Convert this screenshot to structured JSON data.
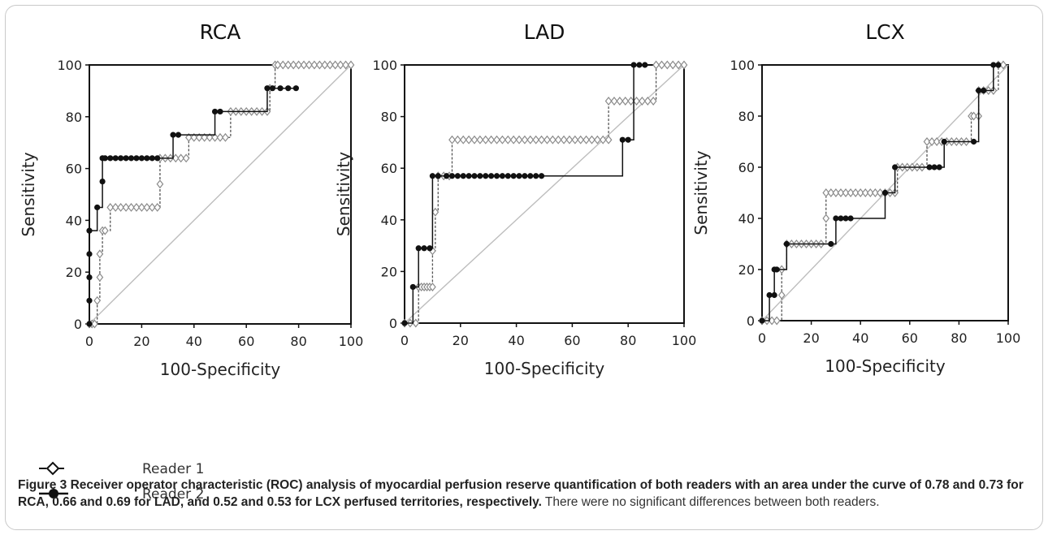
{
  "chart_data": [
    {
      "type": "line",
      "title": "RCA",
      "xlabel": "100-Specificity",
      "ylabel": "Sensitivity",
      "xlim": [
        0,
        100
      ],
      "ylim": [
        0,
        100
      ],
      "xticks": [
        0,
        20,
        40,
        60,
        80,
        100
      ],
      "yticks": [
        0,
        20,
        40,
        60,
        80,
        100
      ],
      "diagonal": true,
      "series": [
        {
          "name": "Reader 1",
          "x": [
            0,
            1,
            2,
            3,
            4,
            4,
            5,
            6,
            8,
            10,
            12,
            14,
            16,
            18,
            20,
            22,
            24,
            26,
            27,
            27,
            29,
            31,
            33,
            35,
            37,
            38,
            40,
            42,
            44,
            46,
            48,
            50,
            52,
            54,
            56,
            58,
            60,
            62,
            64,
            66,
            68,
            69,
            71,
            72,
            74,
            76,
            78,
            80,
            82,
            84,
            86,
            88,
            90,
            92,
            94,
            96,
            98,
            100
          ],
          "y": [
            0,
            0,
            0,
            9,
            18,
            27,
            36,
            36,
            45,
            45,
            45,
            45,
            45,
            45,
            45,
            45,
            45,
            45,
            54,
            64,
            64,
            64,
            64,
            64,
            64,
            72,
            72,
            72,
            72,
            72,
            72,
            72,
            72,
            82,
            82,
            82,
            82,
            82,
            82,
            82,
            82,
            91,
            100,
            100,
            100,
            100,
            100,
            100,
            100,
            100,
            100,
            100,
            100,
            100,
            100,
            100,
            100,
            100
          ]
        },
        {
          "name": "Reader 2",
          "x": [
            0,
            0,
            0,
            0,
            0,
            3,
            5,
            5,
            6,
            8,
            10,
            12,
            14,
            16,
            18,
            20,
            22,
            24,
            26,
            32,
            34,
            48,
            50,
            68,
            70,
            73,
            76,
            79
          ],
          "y": [
            0,
            9,
            18,
            27,
            36,
            45,
            55,
            64,
            64,
            64,
            64,
            64,
            64,
            64,
            64,
            64,
            64,
            64,
            64,
            73,
            73,
            82,
            82,
            91,
            91,
            91,
            91,
            91
          ]
        }
      ]
    },
    {
      "type": "line",
      "title": "LAD",
      "xlabel": "100-Specificity",
      "ylabel": "Sensitivity",
      "xlim": [
        0,
        100
      ],
      "ylim": [
        0,
        100
      ],
      "xticks": [
        0,
        20,
        40,
        60,
        80,
        100
      ],
      "yticks": [
        0,
        20,
        40,
        60,
        80,
        100
      ],
      "diagonal": true,
      "series": [
        {
          "name": "Reader 1",
          "x": [
            0,
            2,
            4,
            5,
            6,
            7,
            8,
            9,
            10,
            10,
            11,
            12,
            14,
            16,
            17,
            19,
            21,
            23,
            25,
            27,
            29,
            31,
            33,
            35,
            37,
            39,
            41,
            43,
            45,
            47,
            49,
            51,
            53,
            55,
            57,
            59,
            61,
            63,
            65,
            67,
            69,
            71,
            73,
            73,
            75,
            77,
            79,
            81,
            83,
            85,
            87,
            89,
            90,
            92,
            94,
            96,
            98,
            100
          ],
          "y": [
            0,
            0,
            0,
            14,
            14,
            14,
            14,
            14,
            14,
            28,
            43,
            57,
            57,
            57,
            71,
            71,
            71,
            71,
            71,
            71,
            71,
            71,
            71,
            71,
            71,
            71,
            71,
            71,
            71,
            71,
            71,
            71,
            71,
            71,
            71,
            71,
            71,
            71,
            71,
            71,
            71,
            71,
            71,
            86,
            86,
            86,
            86,
            86,
            86,
            86,
            86,
            86,
            100,
            100,
            100,
            100,
            100,
            100
          ]
        },
        {
          "name": "Reader 2",
          "x": [
            0,
            3,
            5,
            7,
            9,
            10,
            12,
            15,
            17,
            19,
            21,
            23,
            25,
            27,
            29,
            31,
            33,
            35,
            37,
            39,
            41,
            43,
            45,
            47,
            49,
            78,
            80,
            82,
            84,
            86
          ],
          "y": [
            0,
            14,
            29,
            29,
            29,
            57,
            57,
            57,
            57,
            57,
            57,
            57,
            57,
            57,
            57,
            57,
            57,
            57,
            57,
            57,
            57,
            57,
            57,
            57,
            57,
            71,
            71,
            100,
            100,
            100
          ]
        }
      ]
    },
    {
      "type": "line",
      "title": "LCX",
      "xlabel": "100-Specificity",
      "ylabel": "Sensitivity",
      "xlim": [
        0,
        100
      ],
      "ylim": [
        0,
        100
      ],
      "xticks": [
        0,
        20,
        40,
        60,
        80,
        100
      ],
      "yticks": [
        0,
        20,
        40,
        60,
        80,
        100
      ],
      "diagonal": true,
      "series": [
        {
          "name": "Reader 1",
          "x": [
            0,
            2,
            4,
            6,
            8,
            8,
            10,
            12,
            14,
            16,
            18,
            20,
            22,
            24,
            26,
            26,
            28,
            30,
            32,
            34,
            36,
            38,
            40,
            42,
            44,
            46,
            48,
            50,
            52,
            54,
            55,
            57,
            59,
            61,
            63,
            65,
            67,
            69,
            71,
            73,
            75,
            77,
            79,
            81,
            83,
            85,
            86,
            88,
            88,
            90,
            92,
            94,
            96,
            98
          ],
          "y": [
            0,
            0,
            0,
            0,
            10,
            20,
            30,
            30,
            30,
            30,
            30,
            30,
            30,
            30,
            40,
            50,
            50,
            50,
            50,
            50,
            50,
            50,
            50,
            50,
            50,
            50,
            50,
            50,
            50,
            50,
            60,
            60,
            60,
            60,
            60,
            60,
            70,
            70,
            70,
            70,
            70,
            70,
            70,
            70,
            70,
            80,
            80,
            80,
            90,
            90,
            90,
            90,
            100,
            100
          ]
        },
        {
          "name": "Reader 2",
          "x": [
            0,
            3,
            5,
            5,
            6,
            10,
            28,
            30,
            32,
            34,
            36,
            50,
            54,
            68,
            70,
            72,
            74,
            86,
            88,
            90,
            94,
            96
          ],
          "y": [
            0,
            10,
            10,
            20,
            20,
            30,
            30,
            40,
            40,
            40,
            40,
            50,
            60,
            60,
            60,
            60,
            70,
            70,
            90,
            90,
            100,
            100
          ]
        }
      ]
    }
  ],
  "legend": {
    "items": [
      {
        "label": "Reader 1"
      },
      {
        "label": "Reader 2"
      }
    ]
  },
  "caption": {
    "bold": "Figure 3 Receiver operator characteristic (ROC) analysis of myocardial perfusion reserve quantification of both readers with an area under the curve of 0.78 and 0.73 for RCA, 0.66 and 0.69 for LAD, and 0.52 and 0.53 for LCX perfused territories, respectively.",
    "rest": " There were no significant differences between both readers."
  }
}
